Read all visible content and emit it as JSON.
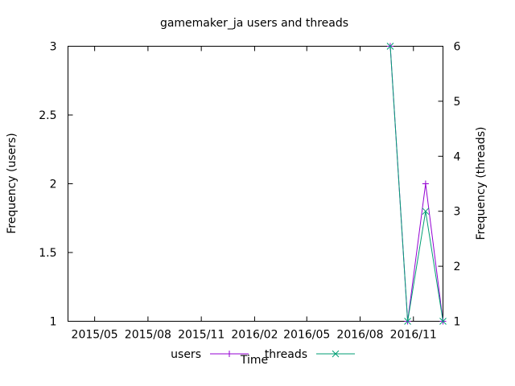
{
  "chart_data": {
    "type": "line",
    "title": "gamemaker_ja users and threads",
    "xlabel": "Time",
    "ylabel": "Frequency (users)",
    "y2label": "Frequency (threads)",
    "x_ticks": [
      "2015/05",
      "2015/08",
      "2015/11",
      "2016/02",
      "2016/05",
      "2016/08",
      "2016/11"
    ],
    "xlim": [
      "2015-03-16",
      "2016-12-22"
    ],
    "y_ticks": [
      "1",
      "1.5",
      "2",
      "2.5",
      "3"
    ],
    "ylim": [
      1,
      3
    ],
    "y2_ticks": [
      "1",
      "2",
      "3",
      "4",
      "5",
      "6"
    ],
    "y2lim": [
      1,
      6
    ],
    "grid": false,
    "legend_position": "bottom",
    "series": [
      {
        "name": "users",
        "axis": "left",
        "color": "#9400d3",
        "marker": "plus",
        "x": [
          "2016-09-22",
          "2016-10-22",
          "2016-11-22",
          "2016-12-22"
        ],
        "y": [
          3,
          1,
          2,
          1
        ]
      },
      {
        "name": "threads",
        "axis": "right",
        "color": "#009e73",
        "marker": "cross",
        "x": [
          "2016-09-22",
          "2016-10-22",
          "2016-11-22",
          "2016-12-22"
        ],
        "y": [
          6,
          1,
          3,
          1
        ]
      }
    ]
  }
}
